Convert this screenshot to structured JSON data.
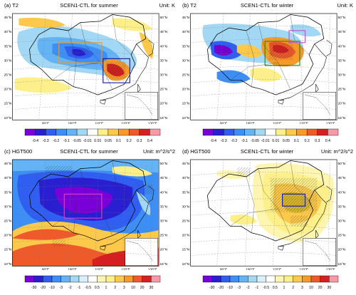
{
  "panels": [
    {
      "label": "(a) T2",
      "title": "SCEN1-CTL for summer",
      "unit": "Unit: K"
    },
    {
      "label": "(b) T2",
      "title": "SCEN1-CTL for winter",
      "unit": "Unit: K"
    },
    {
      "label": "(c) HGT500",
      "title": "SCEN1-CTL for summer",
      "unit": "Unit: m^2/s^2"
    },
    {
      "label": "(d) HGT500",
      "title": "SCEN1-CTL for winter",
      "unit": "Unit: m^2/s^2"
    }
  ],
  "lat_labels_left": [
    "45°N",
    "40°N",
    "35°N",
    "30°N",
    "25°N",
    "20°N",
    "15°N",
    "10°N"
  ],
  "lat_labels_right": [
    "50°N",
    "45°N",
    "40°N",
    "35°N",
    "30°N",
    "25°N",
    "20°N",
    "15°N"
  ],
  "lon_labels": [
    "90°E",
    "100°E",
    "110°E",
    "120°E",
    "130°E"
  ],
  "colorbar_t2": {
    "ticks": [
      "-0.4",
      "-0.3",
      "-0.2",
      "-0.1",
      "-0.05",
      "-0.01",
      "0.01",
      "0.05",
      "0.1",
      "0.2",
      "0.3",
      "0.4"
    ],
    "colors": [
      "#7a00d9",
      "#2a1fd0",
      "#2f5ef0",
      "#3d8ef5",
      "#63b3f5",
      "#a3d8f5",
      "#ffffff",
      "#fdf08a",
      "#fcc94a",
      "#f89a2a",
      "#ef5a2a",
      "#d42020",
      "#f79aa8"
    ]
  },
  "colorbar_hgt": {
    "ticks": [
      "-30",
      "-20",
      "-10",
      "-3",
      "-2",
      "-1",
      "-0.5",
      "0.5",
      "1",
      "2",
      "3",
      "10",
      "20",
      "30"
    ],
    "colors": [
      "#7a00d9",
      "#2a1fd0",
      "#2f5ef0",
      "#3d8ef5",
      "#63b3f5",
      "#a3d8f5",
      "#d9f0fb",
      "#ffffff",
      "#fdf5b0",
      "#fdf08a",
      "#fcc94a",
      "#f89a2a",
      "#ef5a2a",
      "#d42020",
      "#f79aa8"
    ]
  },
  "colors": {
    "orange_box": "#e89a2a",
    "purple_box": "#c04fd8",
    "green_box": "#1a8a1a",
    "navy_box": "#1a1a9a",
    "magenta_box": "#d640d6"
  }
}
